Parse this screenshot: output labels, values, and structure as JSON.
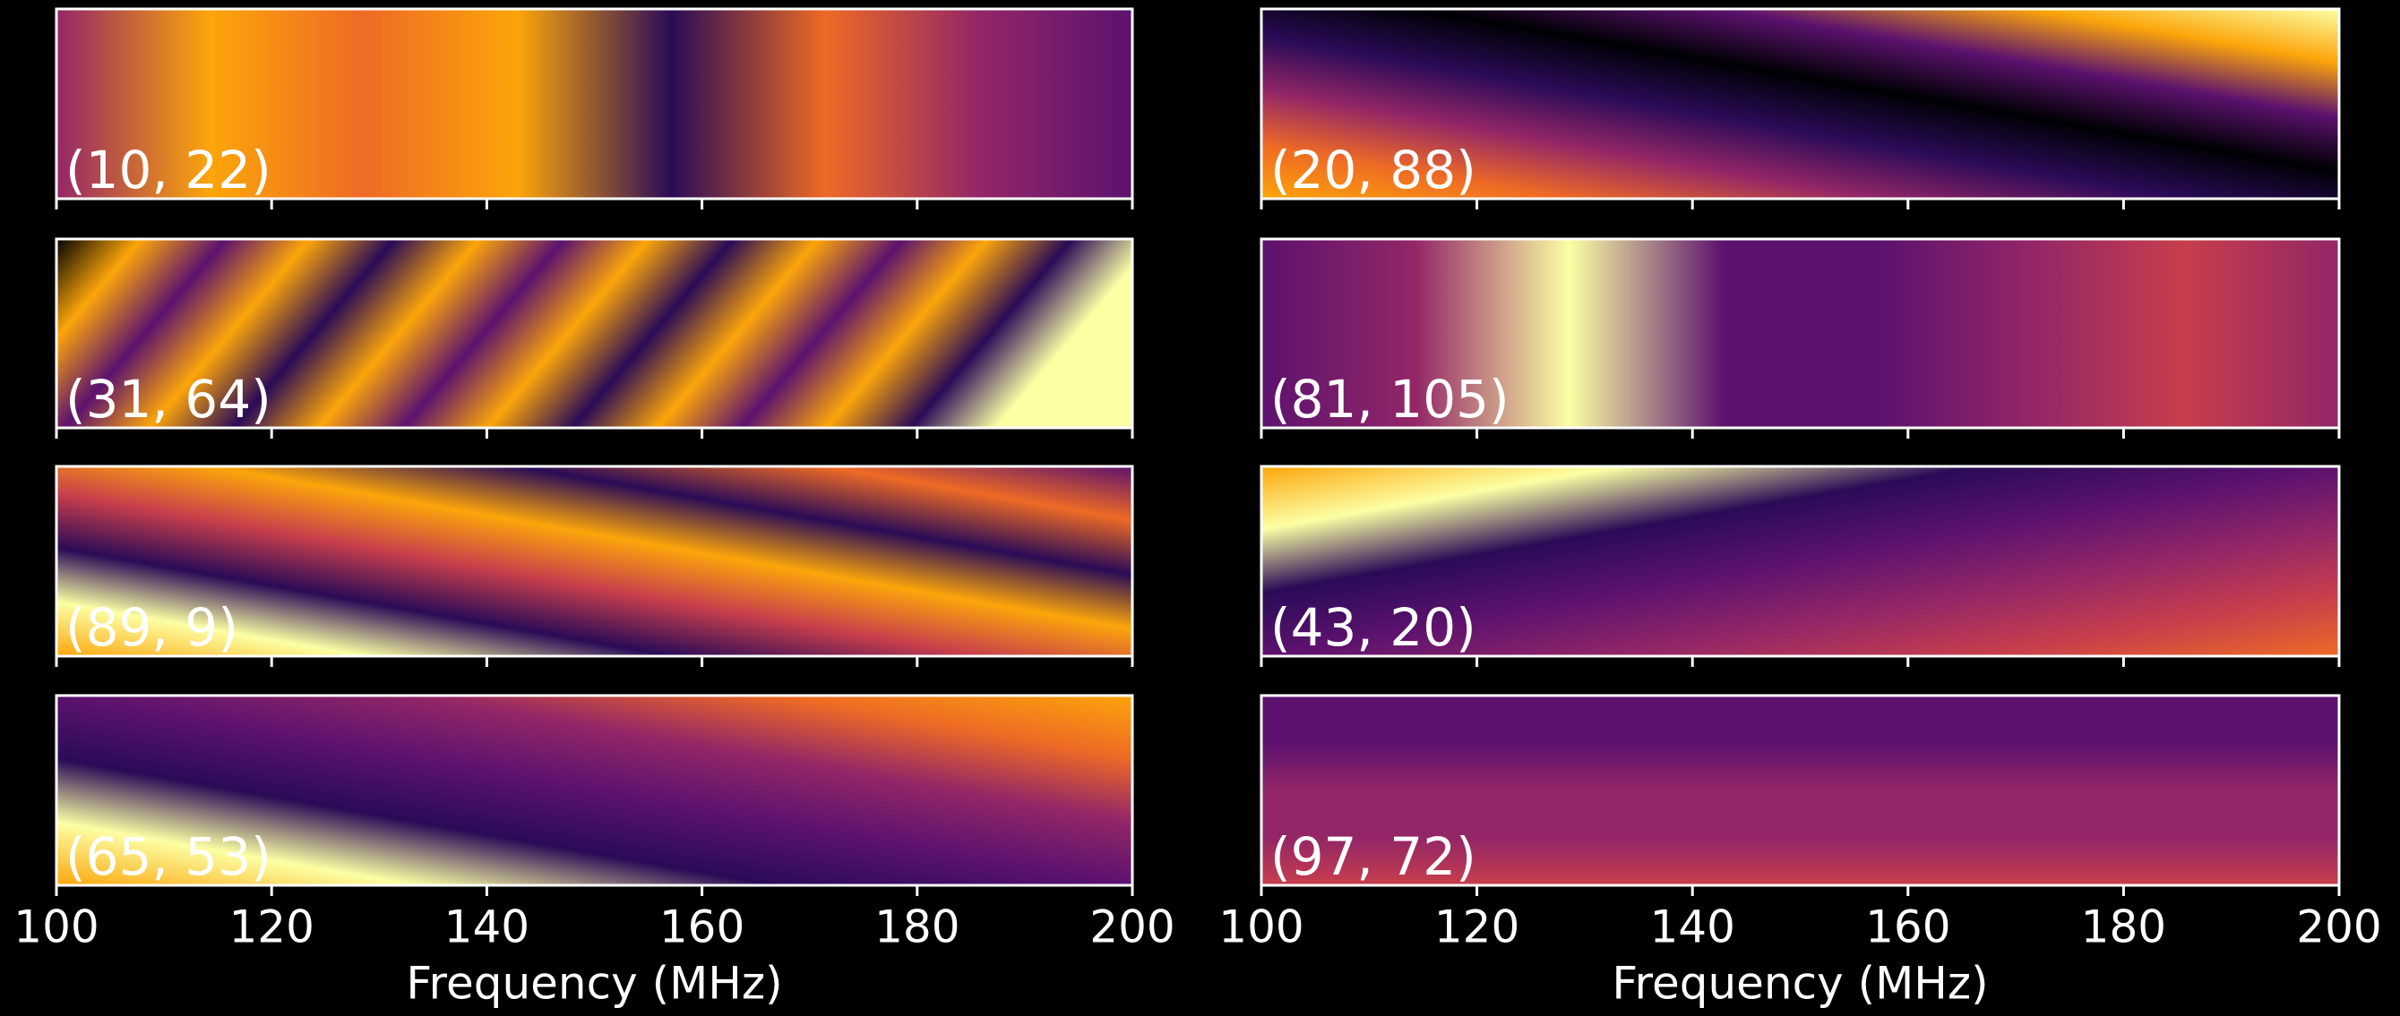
{
  "chart_data": [
    {
      "type": "heatmap",
      "label": "(10, 22)",
      "xlim": [
        100,
        200
      ],
      "xticks": [
        100,
        120,
        140,
        160,
        180,
        200
      ]
    },
    {
      "type": "heatmap",
      "label": "(20, 88)",
      "xlim": [
        100,
        200
      ],
      "xticks": [
        100,
        120,
        140,
        160,
        180,
        200
      ]
    },
    {
      "type": "heatmap",
      "label": "(31, 64)",
      "xlim": [
        100,
        200
      ],
      "xticks": [
        100,
        120,
        140,
        160,
        180,
        200
      ]
    },
    {
      "type": "heatmap",
      "label": "(81, 105)",
      "xlim": [
        100,
        200
      ],
      "xticks": [
        100,
        120,
        140,
        160,
        180,
        200
      ]
    },
    {
      "type": "heatmap",
      "label": "(89, 9)",
      "xlim": [
        100,
        200
      ],
      "xticks": [
        100,
        120,
        140,
        160,
        180,
        200
      ]
    },
    {
      "type": "heatmap",
      "label": "(43, 20)",
      "xlim": [
        100,
        200
      ],
      "xticks": [
        100,
        120,
        140,
        160,
        180,
        200
      ]
    },
    {
      "type": "heatmap",
      "label": "(65, 53)",
      "xlim": [
        100,
        200
      ],
      "xticks": [
        100,
        120,
        140,
        160,
        180,
        200
      ],
      "xlabel": "Frequency (MHz)"
    },
    {
      "type": "heatmap",
      "label": "(97, 72)",
      "xlim": [
        100,
        200
      ],
      "xticks": [
        100,
        120,
        140,
        160,
        180,
        200
      ],
      "xlabel": "Frequency (MHz)"
    }
  ]
}
